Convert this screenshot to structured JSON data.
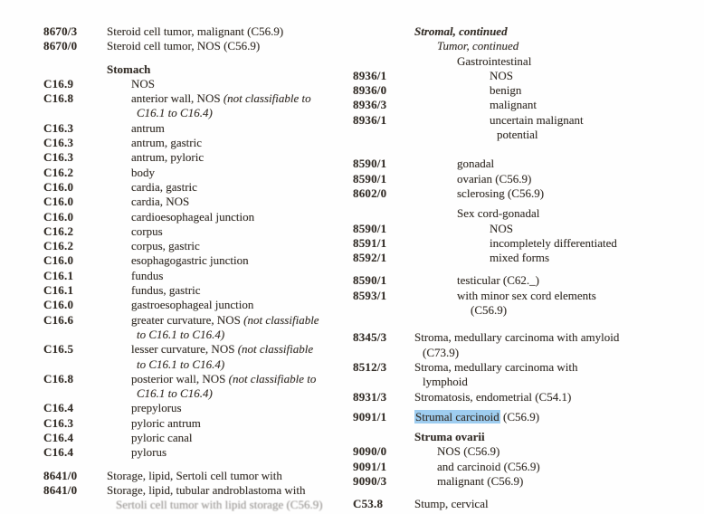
{
  "page": {
    "kind": "ICD-O alphabetic index page (scanned)",
    "text_color": "#36302a",
    "highlight_color": "#9ecdf0",
    "highlighted_phrase": "Strumal carcinoid"
  },
  "columns": [
    {
      "id": "left",
      "rows": [
        {
          "c": "8670/3",
          "ln": [
            {
              "lv": 0,
              "sg": [
                {
                  "t": "Steroid cell tumor, malignant (C56.9)"
                }
              ]
            }
          ]
        },
        {
          "c": "8670/0",
          "ln": [
            {
              "lv": 0,
              "sg": [
                {
                  "t": "Steroid cell tumor, NOS (C56.9)"
                }
              ]
            }
          ]
        },
        {
          "c": "",
          "sp": "md",
          "ln": [
            {
              "lv": 0,
              "sg": [
                {
                  "t": "Stomach",
                  "b": 1
                }
              ]
            }
          ]
        },
        {
          "c": "C16.9",
          "ln": [
            {
              "lv": 1,
              "sg": [
                {
                  "t": "NOS"
                }
              ]
            }
          ]
        },
        {
          "c": "C16.8",
          "ln": [
            {
              "lv": 1,
              "sg": [
                {
                  "t": "anterior wall, NOS "
                },
                {
                  "t": "(not classifiable to",
                  "i": 1
                }
              ]
            },
            {
              "lv": 1,
              "ct": 1,
              "sg": [
                {
                  "t": "C16.1 to C16.4)",
                  "i": 1
                }
              ]
            }
          ]
        },
        {
          "c": "C16.3",
          "ln": [
            {
              "lv": 1,
              "sg": [
                {
                  "t": "antrum"
                }
              ]
            }
          ]
        },
        {
          "c": "C16.3",
          "ln": [
            {
              "lv": 1,
              "sg": [
                {
                  "t": "antrum, gastric"
                }
              ]
            }
          ]
        },
        {
          "c": "C16.3",
          "ln": [
            {
              "lv": 1,
              "sg": [
                {
                  "t": "antrum, pyloric"
                }
              ]
            }
          ]
        },
        {
          "c": "C16.2",
          "ln": [
            {
              "lv": 1,
              "sg": [
                {
                  "t": "body"
                }
              ]
            }
          ]
        },
        {
          "c": "C16.0",
          "ln": [
            {
              "lv": 1,
              "sg": [
                {
                  "t": "cardia, gastric"
                }
              ]
            }
          ]
        },
        {
          "c": "C16.0",
          "ln": [
            {
              "lv": 1,
              "sg": [
                {
                  "t": "cardia, NOS"
                }
              ]
            }
          ]
        },
        {
          "c": "C16.0",
          "ln": [
            {
              "lv": 1,
              "sg": [
                {
                  "t": "cardioesophageal junction"
                }
              ]
            }
          ]
        },
        {
          "c": "C16.2",
          "ln": [
            {
              "lv": 1,
              "sg": [
                {
                  "t": "corpus"
                }
              ]
            }
          ]
        },
        {
          "c": "C16.2",
          "ln": [
            {
              "lv": 1,
              "sg": [
                {
                  "t": "corpus, gastric"
                }
              ]
            }
          ]
        },
        {
          "c": "C16.0",
          "ln": [
            {
              "lv": 1,
              "sg": [
                {
                  "t": "esophagogastric junction"
                }
              ]
            }
          ]
        },
        {
          "c": "C16.1",
          "ln": [
            {
              "lv": 1,
              "sg": [
                {
                  "t": "fundus"
                }
              ]
            }
          ]
        },
        {
          "c": "C16.1",
          "ln": [
            {
              "lv": 1,
              "sg": [
                {
                  "t": "fundus, gastric"
                }
              ]
            }
          ]
        },
        {
          "c": "C16.0",
          "ln": [
            {
              "lv": 1,
              "sg": [
                {
                  "t": "gastroesophageal junction"
                }
              ]
            }
          ]
        },
        {
          "c": "C16.6",
          "ln": [
            {
              "lv": 1,
              "sg": [
                {
                  "t": "greater curvature, NOS "
                },
                {
                  "t": "(not classifiable",
                  "i": 1
                }
              ]
            },
            {
              "lv": 1,
              "ct": 1,
              "sg": [
                {
                  "t": "to C16.1 to C16.4)",
                  "i": 1
                }
              ]
            }
          ]
        },
        {
          "c": "C16.5",
          "ln": [
            {
              "lv": 1,
              "sg": [
                {
                  "t": "lesser curvature, NOS "
                },
                {
                  "t": "(not classifiable",
                  "i": 1
                }
              ]
            },
            {
              "lv": 1,
              "ct": 1,
              "sg": [
                {
                  "t": "to C16.1 to C16.4)",
                  "i": 1
                }
              ]
            }
          ]
        },
        {
          "c": "C16.8",
          "ln": [
            {
              "lv": 1,
              "sg": [
                {
                  "t": "posterior wall, NOS "
                },
                {
                  "t": "(not classifiable to",
                  "i": 1
                }
              ]
            },
            {
              "lv": 1,
              "ct": 1,
              "sg": [
                {
                  "t": "C16.1 to C16.4)",
                  "i": 1
                }
              ]
            }
          ]
        },
        {
          "c": "C16.4",
          "ln": [
            {
              "lv": 1,
              "sg": [
                {
                  "t": "prepylorus"
                }
              ]
            }
          ]
        },
        {
          "c": "C16.3",
          "ln": [
            {
              "lv": 1,
              "sg": [
                {
                  "t": "pyloric antrum"
                }
              ]
            }
          ]
        },
        {
          "c": "C16.4",
          "ln": [
            {
              "lv": 1,
              "sg": [
                {
                  "t": "pyloric canal"
                }
              ]
            }
          ]
        },
        {
          "c": "C16.4",
          "ln": [
            {
              "lv": 1,
              "sg": [
                {
                  "t": "pylorus"
                }
              ]
            }
          ]
        },
        {
          "c": "8641/0",
          "sp": "md",
          "ln": [
            {
              "lv": 0,
              "sg": [
                {
                  "t": "Storage, lipid, Sertoli cell tumor with"
                }
              ]
            }
          ]
        },
        {
          "c": "8641/0",
          "ln": [
            {
              "lv": 0,
              "sg": [
                {
                  "t": "Storage, lipid, tubular androblastoma with"
                }
              ]
            }
          ]
        },
        {
          "c": "",
          "clip": 1,
          "ln": [
            {
              "lv": 0,
              "ct": 1,
              "sg": [
                {
                  "t": "Sertoli cell tumor with lipid storage (C56.9)"
                }
              ]
            }
          ]
        }
      ]
    },
    {
      "id": "right",
      "rows": [
        {
          "c": "",
          "ln": [
            {
              "lv": 0,
              "sg": [
                {
                  "t": "Stromal, continued",
                  "b": 1,
                  "i": 1
                }
              ]
            }
          ]
        },
        {
          "c": "",
          "ln": [
            {
              "lv": 1,
              "sg": [
                {
                  "t": "Tumor, continued",
                  "i": 1
                }
              ]
            }
          ]
        },
        {
          "c": "",
          "ln": [
            {
              "lv": 2,
              "sg": [
                {
                  "t": "Gastrointestinal"
                }
              ]
            }
          ]
        },
        {
          "c": "8936/1",
          "ln": [
            {
              "lv": 3,
              "sg": [
                {
                  "t": "NOS"
                }
              ]
            }
          ]
        },
        {
          "c": "8936/0",
          "ln": [
            {
              "lv": 3,
              "sg": [
                {
                  "t": "benign"
                }
              ]
            }
          ]
        },
        {
          "c": "8936/3",
          "ln": [
            {
              "lv": 3,
              "sg": [
                {
                  "t": "malignant"
                }
              ]
            }
          ]
        },
        {
          "c": "8936/1",
          "ln": [
            {
              "lv": 3,
              "sg": [
                {
                  "t": "uncertain malignant"
                }
              ]
            },
            {
              "lv": 3,
              "ct": 1,
              "sg": [
                {
                  "t": "potential"
                }
              ]
            }
          ]
        },
        {
          "c": "8590/1",
          "sp": "xl",
          "ln": [
            {
              "lv": 2,
              "sg": [
                {
                  "t": "gonadal"
                }
              ]
            }
          ]
        },
        {
          "c": "8590/1",
          "ln": [
            {
              "lv": 2,
              "sg": [
                {
                  "t": "ovarian (C56.9)"
                }
              ]
            }
          ]
        },
        {
          "c": "8602/0",
          "ln": [
            {
              "lv": 2,
              "sg": [
                {
                  "t": "sclerosing (C56.9)"
                }
              ]
            }
          ]
        },
        {
          "c": "",
          "sp": "sm",
          "ln": [
            {
              "lv": 2,
              "sg": [
                {
                  "t": "Sex cord-gonadal"
                }
              ]
            }
          ]
        },
        {
          "c": "8590/1",
          "ln": [
            {
              "lv": 3,
              "sg": [
                {
                  "t": "NOS"
                }
              ]
            }
          ]
        },
        {
          "c": "8591/1",
          "ln": [
            {
              "lv": 3,
              "sg": [
                {
                  "t": "incompletely differentiated"
                }
              ]
            }
          ]
        },
        {
          "c": "8592/1",
          "ln": [
            {
              "lv": 3,
              "sg": [
                {
                  "t": "mixed forms"
                }
              ]
            }
          ]
        },
        {
          "c": "8590/1",
          "sp": "md",
          "ln": [
            {
              "lv": 2,
              "sg": [
                {
                  "t": "testicular (C62._)"
                }
              ]
            }
          ]
        },
        {
          "c": "8593/1",
          "ln": [
            {
              "lv": 2,
              "sg": [
                {
                  "t": "with minor sex cord elements"
                }
              ]
            },
            {
              "lv": 2,
              "ct": 1,
              "sg": [
                {
                  "t": "(C56.9)"
                }
              ]
            }
          ]
        },
        {
          "c": "8345/3",
          "sp": "lg",
          "ln": [
            {
              "lv": 0,
              "sg": [
                {
                  "t": "Stroma, medullary carcinoma with amyloid"
                }
              ]
            },
            {
              "lv": 0,
              "ct": 1,
              "sg": [
                {
                  "t": "(C73.9)"
                }
              ]
            }
          ]
        },
        {
          "c": "8512/3",
          "ln": [
            {
              "lv": 0,
              "sg": [
                {
                  "t": "Stroma, medullary carcinoma with"
                }
              ]
            },
            {
              "lv": 0,
              "ct": 1,
              "sg": [
                {
                  "t": "lymphoid"
                }
              ]
            }
          ]
        },
        {
          "c": "8931/3",
          "ln": [
            {
              "lv": 0,
              "sg": [
                {
                  "t": "Stromatosis, endometrial (C54.1)"
                }
              ]
            }
          ]
        },
        {
          "c": "9091/1",
          "sp": "sm",
          "ln": [
            {
              "lv": 0,
              "sg": [
                {
                  "t": "Strumal carcinoid",
                  "hl": 1
                },
                {
                  "t": " (C56.9)"
                }
              ]
            }
          ]
        },
        {
          "c": "",
          "sp": "sm",
          "ln": [
            {
              "lv": 0,
              "sg": [
                {
                  "t": "Struma ovarii",
                  "b": 1
                }
              ]
            }
          ]
        },
        {
          "c": "9090/0",
          "ln": [
            {
              "lv": 1,
              "sg": [
                {
                  "t": "NOS (C56.9)"
                }
              ]
            }
          ]
        },
        {
          "c": "9091/1",
          "ln": [
            {
              "lv": 1,
              "sg": [
                {
                  "t": "and carcinoid (C56.9)"
                }
              ]
            }
          ]
        },
        {
          "c": "9090/3",
          "ln": [
            {
              "lv": 1,
              "sg": [
                {
                  "t": "malignant (C56.9)"
                }
              ]
            }
          ]
        },
        {
          "c": "C53.8",
          "sp": "md",
          "ln": [
            {
              "lv": 0,
              "sg": [
                {
                  "t": "Stump, cervical"
                }
              ]
            }
          ]
        }
      ]
    }
  ]
}
